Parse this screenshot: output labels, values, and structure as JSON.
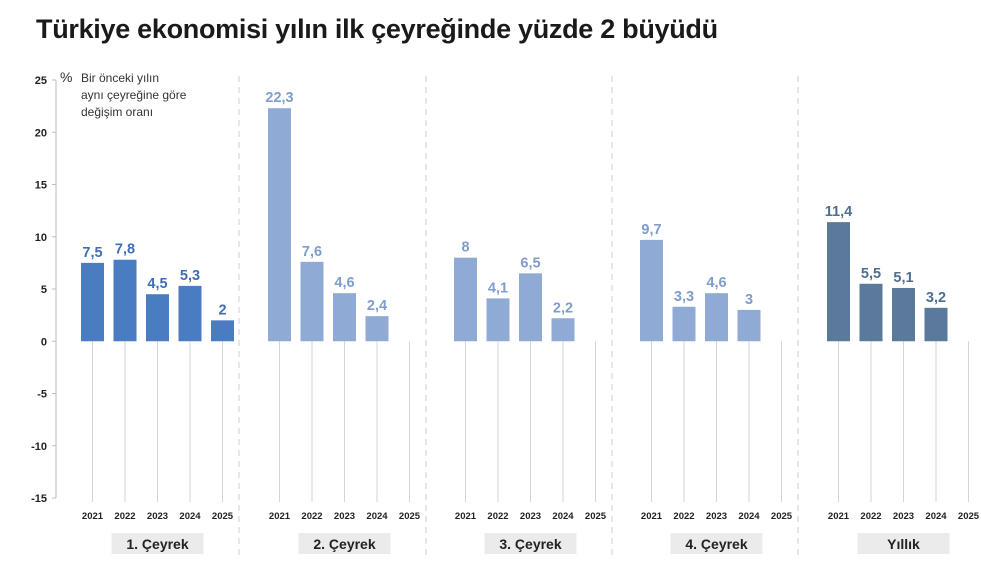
{
  "title": "Türkiye ekonomisi yılın ilk çeyreğinde yüzde 2 büyüdü",
  "chart_data": {
    "type": "bar",
    "unit_symbol": "%",
    "note_lines": [
      "Bir önceki yılın",
      "aynı çeyreğine göre",
      "değişim oranı"
    ],
    "ylim": [
      -15,
      25
    ],
    "yticks": [
      25,
      20,
      15,
      10,
      5,
      0,
      -5,
      -10,
      -15
    ],
    "ytick_labels": [
      "25",
      "20",
      "15",
      "10",
      "5",
      "0",
      "-5",
      "-10",
      "-15"
    ],
    "years": [
      "2021",
      "2022",
      "2023",
      "2024",
      "2025"
    ],
    "groups": [
      {
        "label": "1. Çeyrek",
        "color": "#4a7cc2",
        "label_color": "#3e6fb5",
        "values": [
          7.5,
          7.8,
          4.5,
          5.3,
          2
        ],
        "value_labels": [
          "7,5",
          "7,8",
          "4,5",
          "5,3",
          "2"
        ]
      },
      {
        "label": "2. Çeyrek",
        "color": "#8faad4",
        "label_color": "#7f9dcc",
        "values": [
          22.3,
          7.6,
          4.6,
          2.4,
          null
        ],
        "value_labels": [
          "22,3",
          "7,6",
          "4,6",
          "2,4",
          ""
        ]
      },
      {
        "label": "3. Çeyrek",
        "color": "#8faad4",
        "label_color": "#7f9dcc",
        "values": [
          8,
          4.1,
          6.5,
          2.2,
          null
        ],
        "value_labels": [
          "8",
          "4,1",
          "6,5",
          "2,2",
          ""
        ]
      },
      {
        "label": "4. Çeyrek",
        "color": "#8faad4",
        "label_color": "#7f9dcc",
        "values": [
          9.7,
          3.3,
          4.6,
          3,
          null
        ],
        "value_labels": [
          "9,7",
          "3,3",
          "4,6",
          "3",
          ""
        ]
      },
      {
        "label": "Yıllık",
        "color": "#5b7a9b",
        "label_color": "#4f6e90",
        "values": [
          11.4,
          5.5,
          5.1,
          3.2,
          null
        ],
        "value_labels": [
          "11,4",
          "5,5",
          "5,1",
          "3,2",
          ""
        ]
      }
    ],
    "label_box_color": "#ebebeb",
    "gridlines": false,
    "legend": "none"
  }
}
